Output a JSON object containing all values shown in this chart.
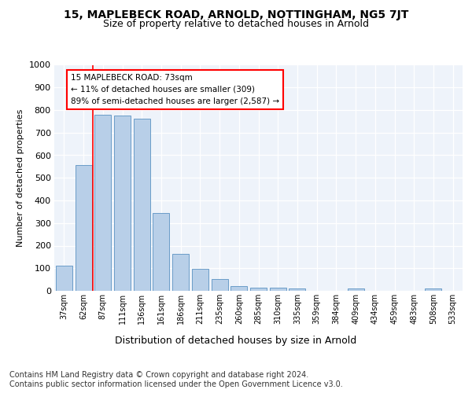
{
  "title": "15, MAPLEBECK ROAD, ARNOLD, NOTTINGHAM, NG5 7JT",
  "subtitle": "Size of property relative to detached houses in Arnold",
  "xlabel": "Distribution of detached houses by size in Arnold",
  "ylabel": "Number of detached properties",
  "bar_labels": [
    "37sqm",
    "62sqm",
    "87sqm",
    "111sqm",
    "136sqm",
    "161sqm",
    "186sqm",
    "211sqm",
    "235sqm",
    "260sqm",
    "285sqm",
    "310sqm",
    "335sqm",
    "359sqm",
    "384sqm",
    "409sqm",
    "434sqm",
    "459sqm",
    "483sqm",
    "508sqm",
    "533sqm"
  ],
  "bar_values": [
    113,
    558,
    778,
    775,
    762,
    343,
    162,
    97,
    53,
    20,
    15,
    15,
    12,
    0,
    0,
    10,
    0,
    0,
    0,
    10,
    0
  ],
  "bar_color": "#b8cfe8",
  "bar_edge_color": "#6a9cc8",
  "vline_color": "red",
  "vline_pos": 1.5,
  "annotation_text": "15 MAPLEBECK ROAD: 73sqm\n← 11% of detached houses are smaller (309)\n89% of semi-detached houses are larger (2,587) →",
  "annotation_box_color": "white",
  "annotation_box_edge_color": "red",
  "ylim": [
    0,
    1000
  ],
  "yticks": [
    0,
    100,
    200,
    300,
    400,
    500,
    600,
    700,
    800,
    900,
    1000
  ],
  "footer_line1": "Contains HM Land Registry data © Crown copyright and database right 2024.",
  "footer_line2": "Contains public sector information licensed under the Open Government Licence v3.0.",
  "bg_color": "#eef3fa",
  "title_fontsize": 10,
  "subtitle_fontsize": 9,
  "ylabel_fontsize": 8,
  "xtick_fontsize": 7,
  "ytick_fontsize": 8,
  "xlabel_fontsize": 9,
  "annotation_fontsize": 7.5,
  "footer_fontsize": 7
}
